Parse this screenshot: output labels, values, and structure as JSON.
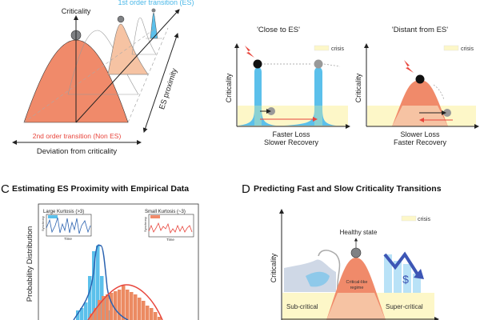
{
  "panel_a": {
    "y_axis_label": "Criticality",
    "top_label": "1st order transition (ES)",
    "bottom_label": "2nd order transition (Non ES)",
    "x_axis_label": "Deviation from criticality",
    "depth_axis_label": "ES proximity"
  },
  "panel_b": {
    "close": {
      "title": "'Close to ES'",
      "legend": "crisis",
      "y_axis_label": "Criticality",
      "caption_1": "Faster Loss",
      "caption_2": "Slower Recovery"
    },
    "distant": {
      "title": "'Distant from ES'",
      "legend": "crisis",
      "y_axis_label": "Criticality",
      "caption_1": "Slower Loss",
      "caption_2": "Faster Recovery"
    }
  },
  "panel_c": {
    "letter": "C",
    "title": "Estimating ES Proximity with Empirical Data",
    "y_axis_label": "Probability Distribution",
    "inset_left": {
      "title": "Large Kurtosis (>3)",
      "ylabel": "Synchrony",
      "xlabel": "Time"
    },
    "inset_right": {
      "title": "Small Kurtosis (~3)",
      "ylabel": "Synchrony",
      "xlabel": "Time"
    }
  },
  "panel_d": {
    "letter": "D",
    "title": "Predicting Fast and Slow Criticality Transitions",
    "legend": "crisis",
    "y_axis_label": "Criticality",
    "peak_label": "Healthy state",
    "regime_label_1": "Critical-like",
    "regime_label_2": "regime",
    "left_label": "Sub-critical",
    "right_label": "Super-critical",
    "dollar": "$"
  },
  "colors": {
    "orange": "#f08a6a",
    "light_orange": "#f6c3a3",
    "blue": "#5bc0eb",
    "dark_blue": "#2a62b0",
    "red": "#e8453c",
    "crisis": "#fdf7c8",
    "gray": "#7f8184"
  }
}
